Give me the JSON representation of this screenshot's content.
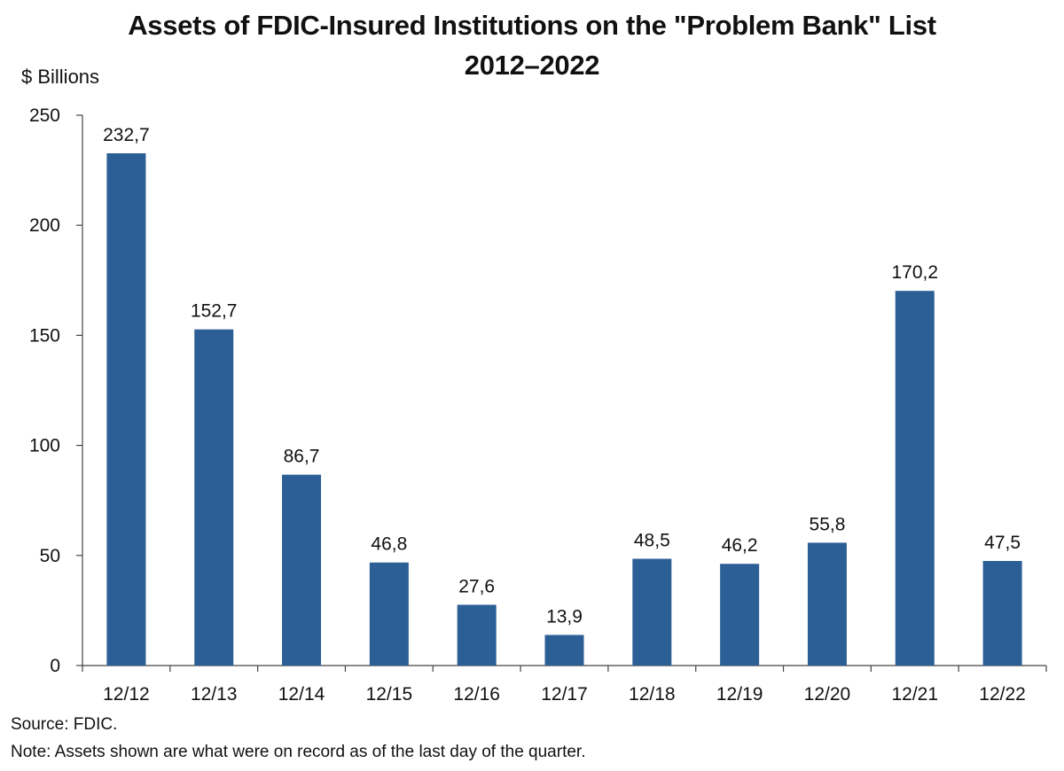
{
  "chart_data": {
    "type": "bar",
    "title": "Assets of FDIC-Insured Institutions on the \"Problem Bank\" List",
    "subtitle": "2012–2022",
    "ylabel": "$ Billions",
    "xlabel": "",
    "categories": [
      "12/12",
      "12/13",
      "12/14",
      "12/15",
      "12/16",
      "12/17",
      "12/18",
      "12/19",
      "12/20",
      "12/21",
      "12/22"
    ],
    "values": [
      232.7,
      152.7,
      86.7,
      46.8,
      27.6,
      13.9,
      48.5,
      46.2,
      55.8,
      170.2,
      47.5
    ],
    "value_labels": [
      "232,7",
      "152,7",
      "86,7",
      "46,8",
      "27,6",
      "13,9",
      "48,5",
      "46,2",
      "55,8",
      "170,2",
      "47,5"
    ],
    "ylim": [
      0,
      250
    ],
    "yticks": [
      0,
      50,
      100,
      150,
      200,
      250
    ],
    "grid": false,
    "legend": "none",
    "bar_color": "#2c5f96"
  },
  "footer": {
    "source": "Source: FDIC.",
    "note": "Note: Assets shown are what were on record as of the last day of the quarter."
  }
}
